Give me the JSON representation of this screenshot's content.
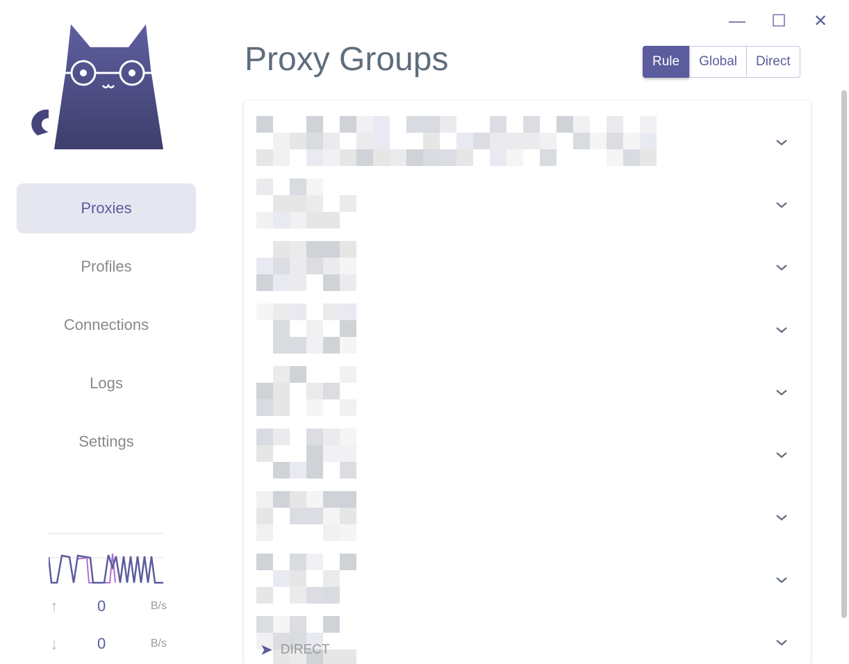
{
  "app": {
    "accent": "#5b5c9d"
  },
  "nav": [
    {
      "label": "Proxies",
      "active": true
    },
    {
      "label": "Profiles"
    },
    {
      "label": "Connections"
    },
    {
      "label": "Logs"
    },
    {
      "label": "Settings"
    }
  ],
  "traffic": {
    "upload_value": "0",
    "upload_unit": "B/s",
    "download_value": "0",
    "download_unit": "B/s"
  },
  "header": {
    "title": "Proxy Groups"
  },
  "modes": [
    {
      "label": "Rule",
      "active": true
    },
    {
      "label": "Global"
    },
    {
      "label": "Direct"
    }
  ],
  "groups": {
    "count_visible": 9,
    "last_group_now": "DIRECT",
    "names_redacted": true
  }
}
